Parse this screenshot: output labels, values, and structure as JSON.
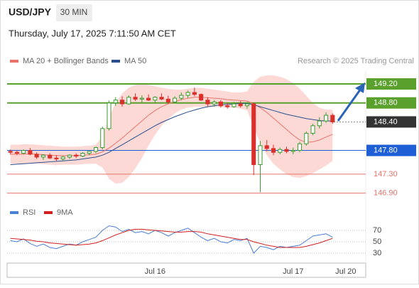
{
  "header": {
    "symbol": "USD/JPY",
    "timeframe": "30 MIN",
    "datetime": "Thursday, July 17, 2025 7:11:50 AM CET",
    "credit": "Research © 2025 Trading Central"
  },
  "chart_data": [
    {
      "type": "candlestick",
      "up_color": "#3a9a2e",
      "down_color": "#d9302c",
      "categories": [
        null,
        null,
        null,
        null,
        null,
        null,
        null,
        null,
        null,
        null,
        null,
        null,
        null,
        null,
        null,
        null,
        null,
        null,
        null,
        null,
        null,
        null,
        "Jul 16",
        null,
        null,
        null,
        null,
        null,
        null,
        null,
        null,
        null,
        null,
        null,
        null,
        null,
        null,
        null,
        null,
        null,
        null,
        null,
        null,
        "Jul 17",
        null,
        null,
        null,
        null,
        null,
        null,
        null,
        "Jul 20",
        null,
        null
      ],
      "open": [
        147.78,
        147.76,
        147.74,
        147.8,
        147.72,
        147.66,
        147.7,
        147.64,
        147.62,
        147.66,
        147.7,
        147.68,
        147.74,
        147.78,
        147.86,
        148.26,
        148.8,
        148.86,
        148.78,
        148.92,
        148.88,
        148.9,
        148.86,
        148.92,
        148.88,
        148.82,
        148.9,
        148.96,
        149.02,
        148.98,
        148.86,
        148.78,
        148.82,
        148.74,
        148.72,
        148.78,
        148.74,
        148.78,
        147.5,
        147.9,
        147.84,
        147.76,
        147.82,
        147.78,
        147.8,
        147.94,
        148.16,
        148.32,
        148.42,
        148.54,
        null,
        null,
        null,
        null
      ],
      "high": [
        147.82,
        147.8,
        147.82,
        147.85,
        147.76,
        147.72,
        147.74,
        147.7,
        147.68,
        147.72,
        147.74,
        147.76,
        147.8,
        147.88,
        148.3,
        148.85,
        148.92,
        148.94,
        148.96,
        149.0,
        148.96,
        148.98,
        148.94,
        149.0,
        148.95,
        148.94,
        149.02,
        149.06,
        149.12,
        149.0,
        148.92,
        148.86,
        148.86,
        148.8,
        148.82,
        148.84,
        148.82,
        148.8,
        148.0,
        148.02,
        147.92,
        147.86,
        147.88,
        147.86,
        147.98,
        148.2,
        148.36,
        148.5,
        148.6,
        148.58,
        null,
        null,
        null,
        null
      ],
      "low": [
        147.72,
        147.7,
        147.72,
        147.7,
        147.62,
        147.6,
        147.62,
        147.58,
        147.58,
        147.62,
        147.64,
        147.66,
        147.7,
        147.74,
        147.82,
        148.22,
        148.74,
        148.72,
        148.76,
        148.84,
        148.8,
        148.84,
        148.8,
        148.86,
        148.78,
        148.8,
        148.86,
        148.9,
        148.94,
        148.84,
        148.72,
        148.72,
        148.7,
        148.68,
        148.7,
        148.7,
        148.68,
        147.28,
        146.92,
        147.78,
        147.7,
        147.72,
        147.74,
        147.72,
        147.76,
        147.9,
        148.12,
        148.26,
        148.38,
        148.36,
        null,
        null,
        null,
        null
      ],
      "close": [
        147.76,
        147.74,
        147.8,
        147.72,
        147.66,
        147.7,
        147.64,
        147.62,
        147.66,
        147.7,
        147.68,
        147.74,
        147.78,
        147.86,
        148.26,
        148.8,
        148.86,
        148.78,
        148.92,
        148.88,
        148.9,
        148.86,
        148.92,
        148.88,
        148.82,
        148.9,
        148.96,
        149.02,
        148.98,
        148.86,
        148.78,
        148.82,
        148.74,
        148.72,
        148.78,
        148.74,
        148.78,
        147.5,
        147.9,
        147.84,
        147.76,
        147.82,
        147.78,
        147.8,
        147.94,
        148.16,
        148.32,
        148.42,
        148.54,
        148.4,
        null,
        null,
        null,
        null
      ],
      "series": [
        {
          "name": "MA 20 + Bollinger Bands",
          "color": "#e8736b",
          "band_color": "#fdd9d6",
          "values": [
            147.72,
            147.72,
            147.72,
            147.73,
            147.72,
            147.71,
            147.7,
            147.69,
            147.69,
            147.69,
            147.69,
            147.7,
            147.71,
            147.72,
            147.77,
            147.85,
            147.95,
            148.06,
            148.18,
            148.3,
            148.42,
            148.54,
            148.64,
            148.72,
            148.78,
            148.83,
            148.87,
            148.9,
            148.92,
            148.92,
            148.91,
            148.9,
            148.89,
            148.87,
            148.86,
            148.85,
            148.84,
            148.78,
            148.7,
            148.6,
            148.48,
            148.36,
            148.24,
            148.12,
            148.02,
            147.97,
            147.98,
            148.02,
            148.08,
            148.14,
            null,
            null,
            null,
            null
          ],
          "upper": [
            147.92,
            147.92,
            147.93,
            147.93,
            147.92,
            147.91,
            147.9,
            147.89,
            147.88,
            147.88,
            147.88,
            147.89,
            147.9,
            147.92,
            148.1,
            148.5,
            148.8,
            149.0,
            149.12,
            149.18,
            149.2,
            149.18,
            149.15,
            149.12,
            149.1,
            149.08,
            149.08,
            149.1,
            149.12,
            149.12,
            149.1,
            149.08,
            149.06,
            149.04,
            149.02,
            149.02,
            149.04,
            149.25,
            149.35,
            149.38,
            149.38,
            149.35,
            149.3,
            149.22,
            149.1,
            148.95,
            148.8,
            148.7,
            148.66,
            148.66,
            null,
            null,
            null,
            null
          ],
          "lower": [
            147.52,
            147.52,
            147.51,
            147.53,
            147.52,
            147.51,
            147.5,
            147.49,
            147.5,
            147.5,
            147.5,
            147.51,
            147.52,
            147.52,
            147.44,
            147.2,
            147.1,
            147.12,
            147.24,
            147.42,
            147.64,
            147.9,
            148.13,
            148.32,
            148.46,
            148.58,
            148.66,
            148.7,
            148.72,
            148.72,
            148.72,
            148.72,
            148.72,
            148.7,
            148.7,
            148.68,
            148.64,
            148.3,
            147.95,
            147.7,
            147.52,
            147.4,
            147.3,
            147.24,
            147.22,
            147.26,
            147.32,
            147.4,
            147.48,
            147.58,
            null,
            null,
            null,
            null
          ]
        },
        {
          "name": "MA 50",
          "color": "#2a4f8f",
          "values": [
            147.5,
            147.51,
            147.52,
            147.53,
            147.54,
            147.55,
            147.56,
            147.57,
            147.58,
            147.59,
            147.6,
            147.62,
            147.64,
            147.66,
            147.7,
            147.76,
            147.84,
            147.92,
            148.0,
            148.08,
            148.16,
            148.24,
            148.32,
            148.39,
            148.45,
            148.51,
            148.56,
            148.61,
            148.65,
            148.69,
            148.72,
            148.74,
            148.76,
            148.77,
            148.78,
            148.79,
            148.79,
            148.76,
            148.72,
            148.68,
            148.64,
            148.6,
            148.56,
            148.53,
            148.5,
            148.47,
            148.45,
            148.43,
            148.42,
            148.42,
            null,
            null,
            null,
            null
          ]
        }
      ],
      "levels": [
        {
          "value": 149.2,
          "label": "149.20",
          "color": "#5aa02c",
          "style": "box"
        },
        {
          "value": 148.8,
          "label": "148.80",
          "color": "#5aa02c",
          "style": "box"
        },
        {
          "value": 148.4,
          "label": "148.40",
          "color": "#333333",
          "style": "current"
        },
        {
          "value": 147.8,
          "label": "147.80",
          "color": "#1f5fd6",
          "style": "box"
        },
        {
          "value": 147.3,
          "label": "147.30",
          "color": "#e8736b",
          "style": "text"
        },
        {
          "value": 146.9,
          "label": "146.90",
          "color": "#e8736b",
          "style": "text"
        }
      ],
      "ylim": [
        146.7,
        149.47
      ]
    },
    {
      "type": "line",
      "ylim": [
        15,
        87.5
      ],
      "yticks": [
        30,
        50,
        70
      ],
      "series": [
        {
          "name": "RSI",
          "color": "#4a7fd4",
          "values": [
            52,
            50,
            55,
            47,
            42,
            46,
            40,
            38,
            42,
            46,
            44,
            50,
            54,
            58,
            70,
            78,
            76,
            68,
            72,
            66,
            68,
            64,
            70,
            66,
            60,
            66,
            70,
            74,
            66,
            58,
            52,
            56,
            50,
            48,
            54,
            52,
            56,
            30,
            42,
            40,
            36,
            42,
            40,
            42,
            44,
            52,
            60,
            62,
            64,
            58,
            null,
            null,
            null,
            null
          ]
        },
        {
          "name": "9MA",
          "color": "#d22020",
          "values": [
            56,
            55,
            54,
            53,
            51,
            50,
            48,
            47,
            46,
            45,
            44,
            45,
            46,
            48,
            52,
            57,
            62,
            66,
            70,
            72,
            72,
            71,
            70,
            69,
            68,
            67,
            67,
            68,
            68,
            67,
            64,
            62,
            60,
            58,
            56,
            54,
            54,
            50,
            47,
            44,
            42,
            40,
            40,
            40,
            40,
            42,
            45,
            48,
            52,
            56,
            null,
            null,
            null,
            null
          ]
        }
      ]
    }
  ]
}
